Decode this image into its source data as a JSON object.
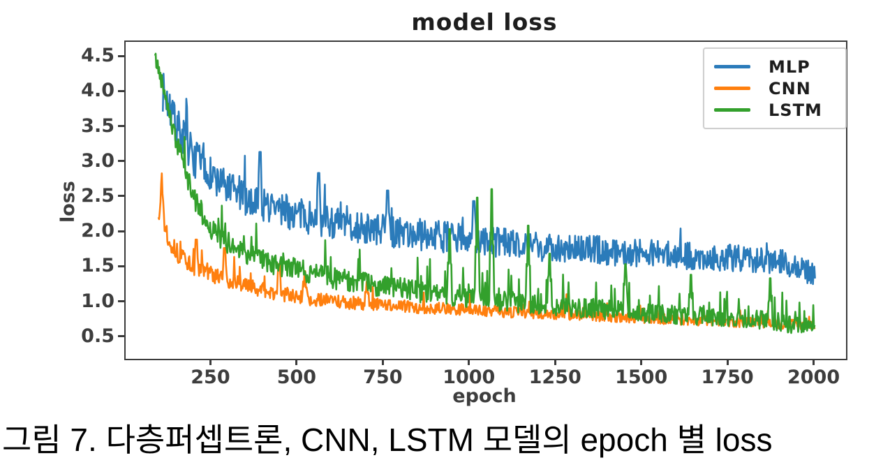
{
  "figure": {
    "caption": "그림 7. 다층퍼셉트론, CNN, LSTM 모델의 epoch 별 loss"
  },
  "chart_data": {
    "type": "line",
    "title": "model loss",
    "xlabel": "epoch",
    "ylabel": "loss",
    "xlim": [
      0,
      2090
    ],
    "ylim": [
      0.2,
      4.72
    ],
    "xticks": [
      250,
      500,
      750,
      1000,
      1250,
      1500,
      1750,
      2000
    ],
    "yticks": [
      4.5,
      4.0,
      3.5,
      3.0,
      2.5,
      2.0,
      1.5,
      1.0,
      0.5
    ],
    "grid": false,
    "legend_position": "upper right",
    "axis_color": "#3b3b3b",
    "series": [
      {
        "name": "MLP",
        "color": "#2b7bba",
        "seed": 7,
        "epoch_start": 108,
        "epoch_end": 2000,
        "step": 2,
        "trend": [
          [
            110,
            4.0
          ],
          [
            140,
            3.6
          ],
          [
            170,
            3.35
          ],
          [
            200,
            3.05
          ],
          [
            250,
            2.8
          ],
          [
            300,
            2.6
          ],
          [
            350,
            2.5
          ],
          [
            400,
            2.4
          ],
          [
            500,
            2.25
          ],
          [
            600,
            2.15
          ],
          [
            700,
            2.05
          ],
          [
            800,
            2.0
          ],
          [
            900,
            1.95
          ],
          [
            1000,
            1.9
          ],
          [
            1100,
            1.85
          ],
          [
            1200,
            1.8
          ],
          [
            1300,
            1.77
          ],
          [
            1400,
            1.74
          ],
          [
            1500,
            1.7
          ],
          [
            1600,
            1.67
          ],
          [
            1700,
            1.65
          ],
          [
            1800,
            1.63
          ],
          [
            1900,
            1.58
          ],
          [
            1950,
            1.5
          ],
          [
            2000,
            1.38
          ]
        ],
        "noise": [
          [
            110,
            0.28
          ],
          [
            250,
            0.26
          ],
          [
            500,
            0.24
          ],
          [
            1000,
            0.22
          ],
          [
            2000,
            0.18
          ]
        ],
        "spike_prob": 0.05,
        "spike_scale": 1.8,
        "spikes": [
          [
            390,
            3.15
          ],
          [
            560,
            2.85
          ],
          [
            760,
            2.6
          ],
          [
            1010,
            2.45
          ]
        ]
      },
      {
        "name": "CNN",
        "color": "#ff7f0e",
        "seed": 13,
        "epoch_start": 95,
        "epoch_end": 2000,
        "step": 2,
        "trend": [
          [
            95,
            2.2
          ],
          [
            105,
            2.8
          ],
          [
            112,
            2.15
          ],
          [
            125,
            1.92
          ],
          [
            150,
            1.7
          ],
          [
            200,
            1.5
          ],
          [
            250,
            1.4
          ],
          [
            300,
            1.32
          ],
          [
            350,
            1.25
          ],
          [
            400,
            1.18
          ],
          [
            450,
            1.12
          ],
          [
            500,
            1.08
          ],
          [
            600,
            1.02
          ],
          [
            700,
            0.98
          ],
          [
            800,
            0.95
          ],
          [
            900,
            0.92
          ],
          [
            1000,
            0.9
          ],
          [
            1100,
            0.87
          ],
          [
            1200,
            0.85
          ],
          [
            1300,
            0.83
          ],
          [
            1400,
            0.8
          ],
          [
            1500,
            0.78
          ],
          [
            1600,
            0.76
          ],
          [
            1700,
            0.74
          ],
          [
            1800,
            0.72
          ],
          [
            1900,
            0.7
          ],
          [
            2000,
            0.67
          ]
        ],
        "noise": [
          [
            95,
            0.15
          ],
          [
            200,
            0.12
          ],
          [
            500,
            0.1
          ],
          [
            1000,
            0.08
          ],
          [
            2000,
            0.07
          ]
        ],
        "spike_prob": 0.05,
        "spike_scale": 2.5,
        "spikes": [
          [
            205,
            1.9
          ],
          [
            287,
            1.78
          ],
          [
            445,
            1.55
          ],
          [
            520,
            1.45
          ],
          [
            700,
            1.3
          ],
          [
            1280,
            1.12
          ]
        ]
      },
      {
        "name": "LSTM",
        "color": "#33a02c",
        "seed": 42,
        "epoch_start": 85,
        "epoch_end": 2000,
        "step": 2,
        "trend": [
          [
            85,
            4.5
          ],
          [
            100,
            4.25
          ],
          [
            120,
            3.9
          ],
          [
            140,
            3.4
          ],
          [
            160,
            3.1
          ],
          [
            180,
            2.75
          ],
          [
            200,
            2.5
          ],
          [
            225,
            2.2
          ],
          [
            250,
            2.05
          ],
          [
            275,
            1.92
          ],
          [
            300,
            1.85
          ],
          [
            350,
            1.7
          ],
          [
            400,
            1.6
          ],
          [
            450,
            1.52
          ],
          [
            500,
            1.47
          ],
          [
            600,
            1.35
          ],
          [
            700,
            1.27
          ],
          [
            800,
            1.2
          ],
          [
            900,
            1.12
          ],
          [
            1000,
            1.08
          ],
          [
            1100,
            1.02
          ],
          [
            1200,
            0.97
          ],
          [
            1300,
            0.93
          ],
          [
            1400,
            0.9
          ],
          [
            1500,
            0.86
          ],
          [
            1600,
            0.82
          ],
          [
            1700,
            0.8
          ],
          [
            1800,
            0.77
          ],
          [
            1900,
            0.73
          ],
          [
            2000,
            0.62
          ]
        ],
        "noise": [
          [
            85,
            0.12
          ],
          [
            200,
            0.16
          ],
          [
            500,
            0.16
          ],
          [
            1000,
            0.15
          ],
          [
            2000,
            0.13
          ]
        ],
        "spike_prob": 0.08,
        "spike_scale": 3.0,
        "spikes": [
          [
            940,
            2.05
          ],
          [
            1020,
            2.5
          ],
          [
            1062,
            2.62
          ],
          [
            1168,
            2.1
          ],
          [
            1230,
            1.7
          ],
          [
            1450,
            1.55
          ],
          [
            1640,
            1.4
          ],
          [
            1870,
            1.35
          ]
        ]
      }
    ]
  }
}
